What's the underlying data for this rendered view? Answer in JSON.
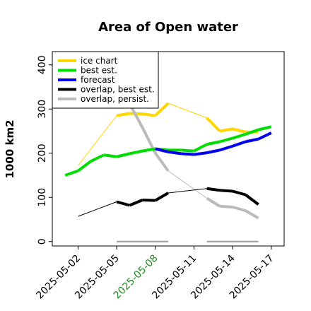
{
  "chart_data": {
    "type": "line",
    "title": "Area of Open water",
    "xlabel": "",
    "ylabel": "1000 km2",
    "ylim": [
      -10,
      430
    ],
    "xlim": [
      "2025-04-30",
      "2025-05-18"
    ],
    "yticks": [
      0,
      100,
      200,
      300,
      400
    ],
    "xticks": [
      {
        "date": "2025-05-02",
        "label": "2025-05-02",
        "color": "#000000"
      },
      {
        "date": "2025-05-05",
        "label": "2025-05-05",
        "color": "#000000"
      },
      {
        "date": "2025-05-08",
        "label": "2025-05-08",
        "color": "#228B22"
      },
      {
        "date": "2025-05-11",
        "label": "2025-05-11",
        "color": "#000000"
      },
      {
        "date": "2025-05-14",
        "label": "2025-05-14",
        "color": "#000000"
      },
      {
        "date": "2025-05-17",
        "label": "2025-05-17",
        "color": "#000000"
      }
    ],
    "legend_position": "top-left",
    "grid": false,
    "series": [
      {
        "name": "ice chart",
        "color": "#FFD700",
        "points": [
          {
            "x": "2025-05-02",
            "y": 172,
            "thin": true
          },
          {
            "x": "2025-05-05",
            "y": 285,
            "thin": true
          },
          {
            "x": "2025-05-06",
            "y": 290
          },
          {
            "x": "2025-05-07",
            "y": 289
          },
          {
            "x": "2025-05-08",
            "y": 285
          },
          {
            "x": "2025-05-09",
            "y": 313
          },
          {
            "x": "2025-05-12",
            "y": 280,
            "thin": true
          },
          {
            "x": "2025-05-13",
            "y": 250
          },
          {
            "x": "2025-05-14",
            "y": 255
          },
          {
            "x": "2025-05-15",
            "y": 248
          },
          {
            "x": "2025-05-16",
            "y": 248
          }
        ]
      },
      {
        "name": "best est.",
        "color": "#00DD00",
        "points": [
          {
            "x": "2025-05-01",
            "y": 150
          },
          {
            "x": "2025-05-02",
            "y": 160
          },
          {
            "x": "2025-05-03",
            "y": 182
          },
          {
            "x": "2025-05-04",
            "y": 196
          },
          {
            "x": "2025-05-05",
            "y": 192
          },
          {
            "x": "2025-05-06",
            "y": 199
          },
          {
            "x": "2025-05-07",
            "y": 205
          },
          {
            "x": "2025-05-08",
            "y": 210
          },
          {
            "x": "2025-05-09",
            "y": 207
          },
          {
            "x": "2025-05-10",
            "y": 207
          },
          {
            "x": "2025-05-11",
            "y": 205
          },
          {
            "x": "2025-05-12",
            "y": 220
          },
          {
            "x": "2025-05-13",
            "y": 226
          },
          {
            "x": "2025-05-14",
            "y": 234
          },
          {
            "x": "2025-05-15",
            "y": 243
          },
          {
            "x": "2025-05-16",
            "y": 253
          },
          {
            "x": "2025-05-17",
            "y": 260
          }
        ]
      },
      {
        "name": "forecast",
        "color": "#0000EE",
        "points": [
          {
            "x": "2025-05-08",
            "y": 210
          },
          {
            "x": "2025-05-09",
            "y": 203
          },
          {
            "x": "2025-05-10",
            "y": 199
          },
          {
            "x": "2025-05-11",
            "y": 197
          },
          {
            "x": "2025-05-12",
            "y": 201
          },
          {
            "x": "2025-05-13",
            "y": 207
          },
          {
            "x": "2025-05-14",
            "y": 216
          },
          {
            "x": "2025-05-15",
            "y": 226
          },
          {
            "x": "2025-05-16",
            "y": 232
          },
          {
            "x": "2025-05-17",
            "y": 246
          }
        ]
      },
      {
        "name": "overlap, best est.",
        "color": "#000000",
        "points": [
          {
            "x": "2025-05-02",
            "y": 57,
            "thin": true
          },
          {
            "x": "2025-05-05",
            "y": 90,
            "thin": true
          },
          {
            "x": "2025-05-06",
            "y": 82
          },
          {
            "x": "2025-05-07",
            "y": 94
          },
          {
            "x": "2025-05-08",
            "y": 93
          },
          {
            "x": "2025-05-09",
            "y": 110
          },
          {
            "x": "2025-05-12",
            "y": 120,
            "thin": true
          },
          {
            "x": "2025-05-13",
            "y": 116
          },
          {
            "x": "2025-05-14",
            "y": 114
          },
          {
            "x": "2025-05-15",
            "y": 106
          },
          {
            "x": "2025-05-16",
            "y": 84
          }
        ]
      },
      {
        "name": "overlap, persist.",
        "color": "#BBBBBB",
        "points": [
          {
            "x": "2025-05-06",
            "y": 312
          },
          {
            "x": "2025-05-07",
            "y": 258
          },
          {
            "x": "2025-05-08",
            "y": 200
          },
          {
            "x": "2025-05-09",
            "y": 160
          },
          {
            "x": "2025-05-12",
            "y": 98,
            "thin": true
          },
          {
            "x": "2025-05-13",
            "y": 80
          },
          {
            "x": "2025-05-14",
            "y": 78
          },
          {
            "x": "2025-05-15",
            "y": 70
          },
          {
            "x": "2025-05-16",
            "y": 53
          }
        ]
      }
    ],
    "baseline_segments": [
      {
        "from": "2025-05-05",
        "to": "2025-05-09",
        "y": 0,
        "color": "#999999"
      },
      {
        "from": "2025-05-12",
        "to": "2025-05-16",
        "y": 0,
        "color": "#999999"
      }
    ]
  }
}
